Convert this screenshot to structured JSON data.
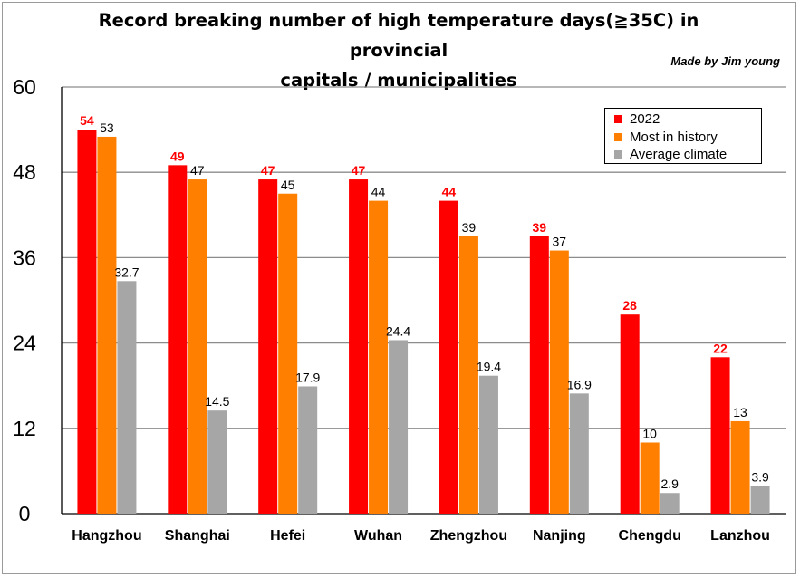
{
  "title_line1": "Record breaking number of high temperature days(≧35C) in provincial",
  "title_line2": "capitals / municipalities",
  "credit": "Made by Jim young",
  "chart_data": {
    "type": "bar",
    "categories": [
      "Hangzhou",
      "Shanghai",
      "Hefei",
      "Wuhan",
      "Zhengzhou",
      "Nanjing",
      "Chengdu",
      "Lanzhou"
    ],
    "series": [
      {
        "name": "2022",
        "color": "#ff0000",
        "label_color": "#ff0000",
        "label_bold": true,
        "values": [
          54,
          49,
          47,
          47,
          44,
          39,
          28,
          22
        ]
      },
      {
        "name": "Most in history",
        "color": "#ff7f00",
        "label_color": "#000000",
        "label_bold": false,
        "values": [
          53,
          47,
          45,
          44,
          39,
          37,
          10,
          13
        ]
      },
      {
        "name": "Average climate",
        "color": "#a6a6a6",
        "label_color": "#000000",
        "label_bold": false,
        "values": [
          32.7,
          14.5,
          17.9,
          24.4,
          19.4,
          16.9,
          2.9,
          3.9
        ]
      }
    ],
    "ylim": [
      0,
      60
    ],
    "yticks": [
      0,
      12,
      24,
      36,
      48,
      60
    ],
    "grid": true,
    "legend_position": "top-right",
    "xlabel": "",
    "ylabel": ""
  }
}
